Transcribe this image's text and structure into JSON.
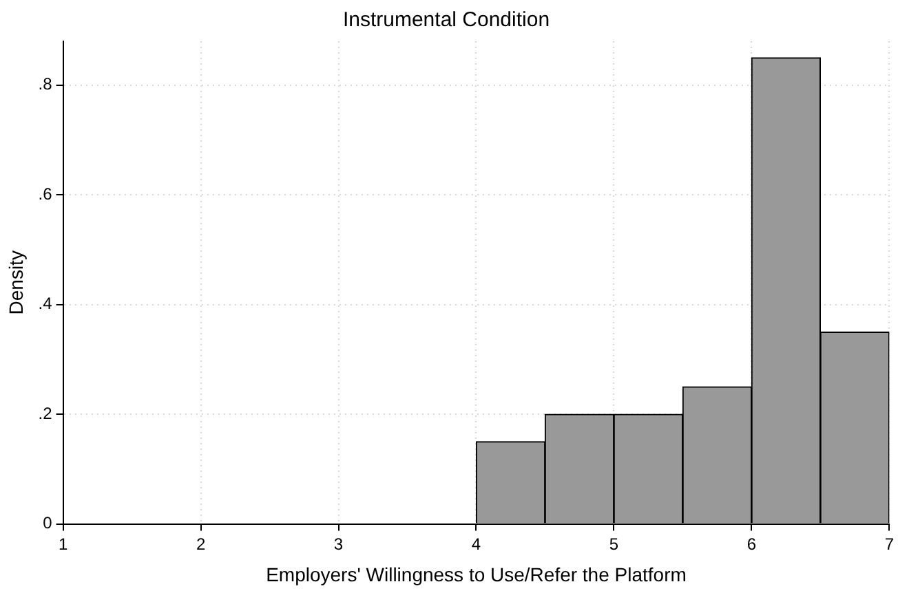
{
  "chart_data": {
    "type": "histogram",
    "title": "Instrumental Condition",
    "xlabel": "Employers' Willingness to Use/Refer the Platform",
    "ylabel": "Density",
    "bins": [
      4,
      4.5,
      5,
      5.5,
      6,
      6.5,
      7
    ],
    "values": [
      0.15,
      0.2,
      0.2,
      0.25,
      0.85,
      0.35
    ],
    "color": "#999999",
    "xlim": [
      1,
      7
    ],
    "xticks": [
      1,
      2,
      3,
      4,
      5,
      6,
      7
    ],
    "ylim": [
      0,
      0.88
    ],
    "yticks": [
      0,
      {
        "value": 0.2,
        "label": ".2"
      },
      {
        "value": 0.4,
        "label": ".4"
      },
      {
        "value": 0.6,
        "label": ".6"
      },
      {
        "value": 0.8,
        "label": ".8"
      }
    ],
    "grid": true
  }
}
